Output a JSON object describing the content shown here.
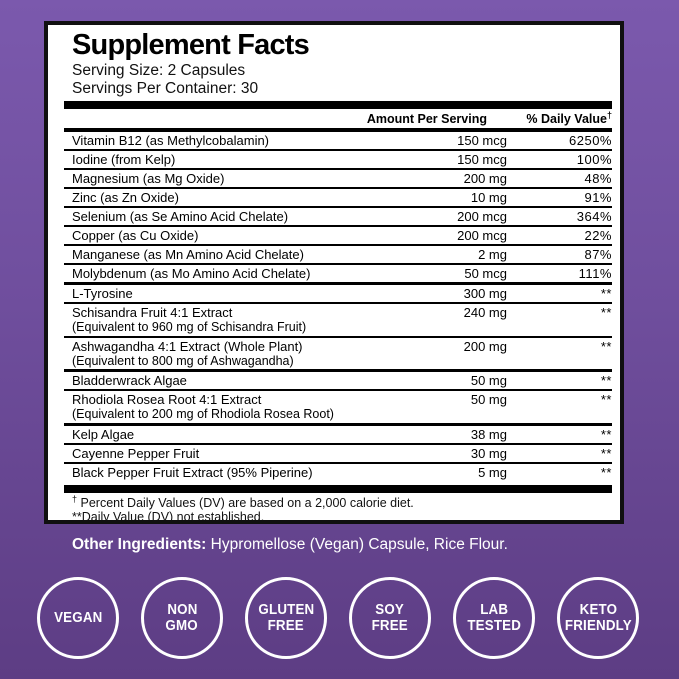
{
  "background": {
    "gradient_top": "#7b59ad",
    "gradient_bottom": "#5d3d84",
    "panel_bg": "#ffffff",
    "panel_border": "#101010",
    "text_on_bg": "#ffffff"
  },
  "label": {
    "title": "Supplement Facts",
    "serving_size": "Serving Size: 2 Capsules",
    "servings_per_container": "Servings Per Container: 30",
    "columns": {
      "amount": "Amount Per Serving",
      "dv": "% Daily Value",
      "dv_sup": "†"
    },
    "rows": [
      {
        "name": "Vitamin B12 (as Methylcobalamin)",
        "amount": "150 mcg",
        "dv": "6250%"
      },
      {
        "name": "Iodine (from Kelp)",
        "amount": "150 mcg",
        "dv": "100%"
      },
      {
        "name": "Magnesium (as Mg Oxide)",
        "amount": "200 mg",
        "dv": "48%"
      },
      {
        "name": "Zinc (as Zn Oxide)",
        "amount": "10 mg",
        "dv": "91%"
      },
      {
        "name": "Selenium (as Se Amino Acid Chelate)",
        "amount": "200 mcg",
        "dv": "364%"
      },
      {
        "name": "Copper (as Cu Oxide)",
        "amount": "200 mcg",
        "dv": "22%"
      },
      {
        "name": "Manganese (as Mn Amino Acid Chelate)",
        "amount": "2 mg",
        "dv": "87%"
      },
      {
        "name": "Molybdenum (as Mo Amino Acid Chelate)",
        "amount": "50 mcg",
        "dv": "111%"
      },
      {
        "name": "L-Tyrosine",
        "amount": "300 mg",
        "dv": "**",
        "rule": "medium"
      },
      {
        "name": "Schisandra Fruit 4:1 Extract",
        "sub": "(Equivalent to 960 mg of Schisandra Fruit)",
        "amount": "240 mg",
        "dv": "**"
      },
      {
        "name": "Ashwagandha 4:1 Extract (Whole Plant)",
        "sub": "(Equivalent to 800 mg of Ashwagandha)",
        "amount": "200 mg",
        "dv": "**"
      },
      {
        "name": "Bladderwrack Algae",
        "amount": "50 mg",
        "dv": "**",
        "rule": "medium"
      },
      {
        "name": "Rhodiola Rosea Root 4:1 Extract",
        "sub": "(Equivalent to 200 mg of Rhodiola Rosea Root)",
        "amount": "50 mg",
        "dv": "**"
      },
      {
        "name": "Kelp Algae",
        "amount": "38 mg",
        "dv": "**",
        "rule": "medium"
      },
      {
        "name": "Cayenne Pepper Fruit",
        "amount": "30 mg",
        "dv": "**"
      },
      {
        "name": "Black Pepper Fruit Extract (95% Piperine)",
        "amount": "5 mg",
        "dv": "**"
      }
    ],
    "footnotes": [
      {
        "sym": "†",
        "text": " Percent Daily Values (DV) are based on a 2,000 calorie diet."
      },
      {
        "sym": "",
        "text": "**Daily Value (DV) not established."
      }
    ]
  },
  "other_ingredients": {
    "label": "Other Ingredients:",
    "text": " Hypromellose (Vegan) Capsule, Rice Flour."
  },
  "badges": [
    {
      "id": "vegan",
      "lines": [
        "VEGAN"
      ]
    },
    {
      "id": "non-gmo",
      "lines": [
        "NON",
        "GMO"
      ]
    },
    {
      "id": "gluten-free",
      "lines": [
        "GLUTEN",
        "FREE"
      ]
    },
    {
      "id": "soy-free",
      "lines": [
        "SOY",
        "FREE"
      ]
    },
    {
      "id": "lab-tested",
      "lines": [
        "LAB",
        "TESTED"
      ]
    },
    {
      "id": "keto-friendly",
      "lines": [
        "KETO",
        "FRIENDLY"
      ]
    }
  ]
}
